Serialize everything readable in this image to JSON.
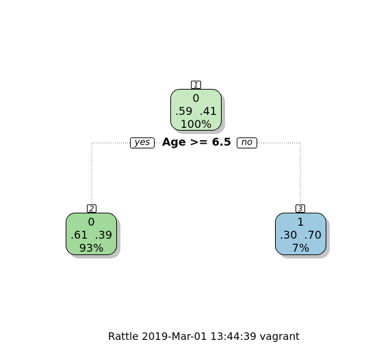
{
  "nodes": [
    {
      "id": "1",
      "class_label": "0",
      "probs": ".59  .41",
      "percent": "100%",
      "fill": "#c7e9c0"
    },
    {
      "id": "2",
      "class_label": "0",
      "probs": ".61  .39",
      "percent": "93%",
      "fill": "#a1d99b"
    },
    {
      "id": "3",
      "class_label": "1",
      "probs": ".30  .70",
      "percent": "7%",
      "fill": "#9ecae1"
    }
  ],
  "split": {
    "label": "Age >= 6.5",
    "yes_label": "yes",
    "no_label": "no"
  },
  "caption": "Rattle 2019-Mar-01 13:44:39 vagrant"
}
